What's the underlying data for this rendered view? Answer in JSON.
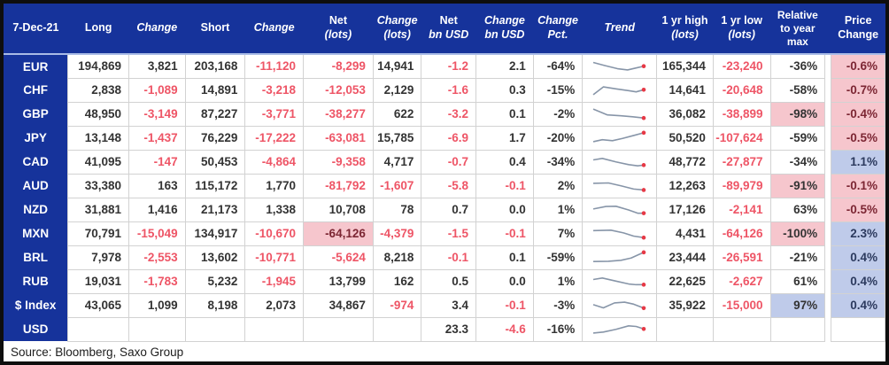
{
  "header": {
    "columns": [
      {
        "key": "label",
        "lines": [
          "7-Dec-21"
        ],
        "italic": [
          false
        ]
      },
      {
        "key": "long",
        "lines": [
          "Long"
        ],
        "italic": [
          false
        ]
      },
      {
        "key": "long_chg",
        "lines": [
          "Change"
        ],
        "italic": [
          true
        ]
      },
      {
        "key": "short",
        "lines": [
          "Short"
        ],
        "italic": [
          false
        ]
      },
      {
        "key": "short_chg",
        "lines": [
          "Change"
        ],
        "italic": [
          true
        ]
      },
      {
        "key": "net_lots",
        "lines": [
          "Net",
          "(lots)"
        ],
        "italic": [
          false,
          true
        ]
      },
      {
        "key": "net_lots_chg",
        "lines": [
          "Change",
          "(lots)"
        ],
        "italic": [
          true,
          true
        ]
      },
      {
        "key": "net_usd",
        "lines": [
          "Net",
          "bn USD"
        ],
        "italic": [
          false,
          true
        ]
      },
      {
        "key": "net_usd_chg",
        "lines": [
          "Change",
          "bn USD"
        ],
        "italic": [
          true,
          true
        ]
      },
      {
        "key": "chg_pct",
        "lines": [
          "Change",
          "Pct."
        ],
        "italic": [
          true,
          true
        ]
      },
      {
        "key": "trend",
        "lines": [
          "Trend"
        ],
        "italic": [
          true
        ]
      },
      {
        "key": "yr_high",
        "lines": [
          "1 yr high",
          "(lots)"
        ],
        "italic": [
          false,
          true
        ]
      },
      {
        "key": "yr_low",
        "lines": [
          "1 yr low",
          "(lots)"
        ],
        "italic": [
          false,
          true
        ]
      },
      {
        "key": "rel_max",
        "lines": [
          "Relative",
          "to year",
          "max"
        ],
        "italic": [
          false,
          false,
          false
        ]
      },
      {
        "key": "spacer",
        "lines": [],
        "italic": []
      },
      {
        "key": "price_chg",
        "lines": [
          "Price",
          "Change"
        ],
        "italic": [
          false,
          false
        ]
      }
    ]
  },
  "rows": [
    {
      "label": "EUR",
      "long": "194,869",
      "long_chg": "3,821",
      "short": "203,168",
      "short_chg": "-11,120",
      "net_lots": "-8,299",
      "net_lots_chg": "14,941",
      "net_usd": "-1.2",
      "net_usd_chg": "2.1",
      "chg_pct": "-64%",
      "trend": [
        [
          0,
          18
        ],
        [
          22,
          42
        ],
        [
          48,
          68
        ],
        [
          68,
          78
        ],
        [
          85,
          62
        ],
        [
          100,
          48
        ]
      ],
      "yr_high": "165,344",
      "yr_low": "-23,240",
      "rel_max": "-36%",
      "price_chg": "-0.6%",
      "highlights": {
        "price_chg": "pink"
      }
    },
    {
      "label": "CHF",
      "long": "2,838",
      "long_chg": "-1,089",
      "short": "14,891",
      "short_chg": "-3,218",
      "net_lots": "-12,053",
      "net_lots_chg": "2,129",
      "net_usd": "-1.6",
      "net_usd_chg": "0.3",
      "chg_pct": "-15%",
      "trend": [
        [
          0,
          85
        ],
        [
          20,
          22
        ],
        [
          45,
          38
        ],
        [
          70,
          52
        ],
        [
          85,
          62
        ],
        [
          100,
          45
        ]
      ],
      "yr_high": "14,641",
      "yr_low": "-20,648",
      "rel_max": "-58%",
      "price_chg": "-0.7%",
      "highlights": {
        "price_chg": "pink"
      }
    },
    {
      "label": "GBP",
      "long": "48,950",
      "long_chg": "-3,149",
      "short": "87,227",
      "short_chg": "-3,771",
      "net_lots": "-38,277",
      "net_lots_chg": "622",
      "net_usd": "-3.2",
      "net_usd_chg": "0.1",
      "chg_pct": "-2%",
      "trend": [
        [
          0,
          8
        ],
        [
          28,
          55
        ],
        [
          55,
          62
        ],
        [
          78,
          70
        ],
        [
          100,
          80
        ]
      ],
      "yr_high": "36,082",
      "yr_low": "-38,899",
      "rel_max": "-98%",
      "price_chg": "-0.4%",
      "highlights": {
        "rel_max": "pink",
        "price_chg": "pink"
      }
    },
    {
      "label": "JPY",
      "long": "13,148",
      "long_chg": "-1,437",
      "short": "76,229",
      "short_chg": "-17,222",
      "net_lots": "-63,081",
      "net_lots_chg": "15,785",
      "net_usd": "-6.9",
      "net_usd_chg": "1.7",
      "chg_pct": "-20%",
      "trend": [
        [
          0,
          78
        ],
        [
          18,
          62
        ],
        [
          38,
          70
        ],
        [
          58,
          52
        ],
        [
          80,
          28
        ],
        [
          100,
          6
        ]
      ],
      "yr_high": "50,520",
      "yr_low": "-107,624",
      "rel_max": "-59%",
      "price_chg": "-0.5%",
      "highlights": {
        "price_chg": "pink"
      }
    },
    {
      "label": "CAD",
      "long": "41,095",
      "long_chg": "-147",
      "short": "50,453",
      "short_chg": "-4,864",
      "net_lots": "-9,358",
      "net_lots_chg": "4,717",
      "net_usd": "-0.7",
      "net_usd_chg": "0.4",
      "chg_pct": "-34%",
      "trend": [
        [
          0,
          32
        ],
        [
          18,
          20
        ],
        [
          45,
          48
        ],
        [
          70,
          70
        ],
        [
          88,
          80
        ],
        [
          100,
          74
        ]
      ],
      "yr_high": "48,772",
      "yr_low": "-27,877",
      "rel_max": "-34%",
      "price_chg": "1.1%",
      "highlights": {
        "price_chg": "blue"
      }
    },
    {
      "label": "AUD",
      "long": "33,380",
      "long_chg": "163",
      "short": "115,172",
      "short_chg": "1,770",
      "net_lots": "-81,792",
      "net_lots_chg": "-1,607",
      "net_usd": "-5.8",
      "net_usd_chg": "-0.1",
      "chg_pct": "2%",
      "trend": [
        [
          0,
          28
        ],
        [
          30,
          25
        ],
        [
          55,
          48
        ],
        [
          80,
          74
        ],
        [
          100,
          82
        ]
      ],
      "yr_high": "12,263",
      "yr_low": "-89,979",
      "rel_max": "-91%",
      "price_chg": "-0.1%",
      "highlights": {
        "rel_max": "pink",
        "price_chg": "pink"
      }
    },
    {
      "label": "NZD",
      "long": "31,881",
      "long_chg": "1,416",
      "short": "21,173",
      "short_chg": "1,338",
      "net_lots": "10,708",
      "net_lots_chg": "78",
      "net_usd": "0.7",
      "net_usd_chg": "0.0",
      "chg_pct": "1%",
      "trend": [
        [
          0,
          42
        ],
        [
          25,
          22
        ],
        [
          45,
          20
        ],
        [
          70,
          50
        ],
        [
          88,
          76
        ],
        [
          100,
          76
        ]
      ],
      "yr_high": "17,126",
      "yr_low": "-2,141",
      "rel_max": "63%",
      "price_chg": "-0.5%",
      "highlights": {
        "price_chg": "pink"
      }
    },
    {
      "label": "MXN",
      "long": "70,791",
      "long_chg": "-15,049",
      "short": "134,917",
      "short_chg": "-10,670",
      "net_lots": "-64,126",
      "net_lots_chg": "-4,379",
      "net_usd": "-1.5",
      "net_usd_chg": "-0.1",
      "chg_pct": "7%",
      "trend": [
        [
          0,
          24
        ],
        [
          35,
          20
        ],
        [
          60,
          42
        ],
        [
          80,
          68
        ],
        [
          100,
          80
        ]
      ],
      "yr_high": "4,431",
      "yr_low": "-64,126",
      "rel_max": "-100%",
      "price_chg": "2.3%",
      "highlights": {
        "net_lots": "pink",
        "rel_max": "pink",
        "price_chg": "blue"
      }
    },
    {
      "label": "BRL",
      "long": "7,978",
      "long_chg": "-2,553",
      "short": "13,602",
      "short_chg": "-10,771",
      "net_lots": "-5,624",
      "net_lots_chg": "8,218",
      "net_usd": "-0.1",
      "net_usd_chg": "0.1",
      "chg_pct": "-59%",
      "trend": [
        [
          0,
          80
        ],
        [
          30,
          78
        ],
        [
          55,
          70
        ],
        [
          75,
          52
        ],
        [
          90,
          24
        ],
        [
          100,
          6
        ]
      ],
      "yr_high": "23,444",
      "yr_low": "-26,591",
      "rel_max": "-21%",
      "price_chg": "0.4%",
      "highlights": {
        "price_chg": "blue"
      }
    },
    {
      "label": "RUB",
      "long": "19,031",
      "long_chg": "-1,783",
      "short": "5,232",
      "short_chg": "-1,945",
      "net_lots": "13,799",
      "net_lots_chg": "162",
      "net_usd": "0.5",
      "net_usd_chg": "0.0",
      "chg_pct": "1%",
      "trend": [
        [
          0,
          32
        ],
        [
          18,
          20
        ],
        [
          45,
          45
        ],
        [
          70,
          68
        ],
        [
          85,
          74
        ],
        [
          100,
          74
        ]
      ],
      "yr_high": "22,625",
      "yr_low": "-2,627",
      "rel_max": "61%",
      "price_chg": "0.4%",
      "highlights": {
        "price_chg": "blue"
      }
    },
    {
      "label": "$ Index",
      "long": "43,065",
      "long_chg": "1,099",
      "short": "8,198",
      "short_chg": "2,073",
      "net_lots": "34,867",
      "net_lots_chg": "-974",
      "net_usd": "3.4",
      "net_usd_chg": "-0.1",
      "chg_pct": "-3%",
      "trend": [
        [
          0,
          42
        ],
        [
          20,
          68
        ],
        [
          42,
          28
        ],
        [
          62,
          22
        ],
        [
          80,
          38
        ],
        [
          100,
          70
        ]
      ],
      "yr_high": "35,922",
      "yr_low": "-15,000",
      "rel_max": "97%",
      "price_chg": "0.4%",
      "highlights": {
        "rel_max": "blue",
        "price_chg": "blue"
      }
    },
    {
      "label": "USD",
      "long": "",
      "long_chg": "",
      "short": "",
      "short_chg": "",
      "net_lots": "",
      "net_lots_chg": "",
      "net_usd": "23.3",
      "net_usd_chg": "-4.6",
      "chg_pct": "-16%",
      "trend": [
        [
          0,
          78
        ],
        [
          20,
          70
        ],
        [
          45,
          48
        ],
        [
          70,
          20
        ],
        [
          85,
          25
        ],
        [
          100,
          45
        ]
      ],
      "yr_high": "",
      "yr_low": "",
      "rel_max": "",
      "price_chg": "",
      "highlights": {}
    }
  ],
  "footer": {
    "source": "Source: Bloomberg, Saxo Group"
  },
  "colors": {
    "header_bg": "#16339b",
    "negative_text": "#ee5566",
    "normal_text": "#333333",
    "pink_bg": "#f6c6cd",
    "blue_bg": "#bfcbea",
    "maroon_text": "#7c2633",
    "navy_text": "#2c3a5e",
    "spark_line": "#8795a8",
    "spark_dot": "#e63946"
  }
}
